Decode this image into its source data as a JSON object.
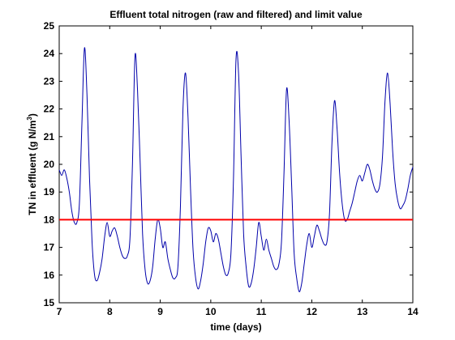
{
  "chart_data": {
    "type": "line",
    "title": "Effluent total nitrogen (raw and filtered) and limit value",
    "xlabel": "time (days)",
    "ylabel_main": "TN in effluent (g N/m",
    "ylabel_sup": "3",
    "ylabel_close": ")",
    "xlim": [
      7,
      14
    ],
    "ylim": [
      15,
      25
    ],
    "xticks": [
      7,
      8,
      9,
      10,
      11,
      12,
      13,
      14
    ],
    "yticks": [
      15,
      16,
      17,
      18,
      19,
      20,
      21,
      22,
      23,
      24,
      25
    ],
    "xtick_labels": [
      "7",
      "8",
      "9",
      "10",
      "11",
      "12",
      "13",
      "14"
    ],
    "ytick_labels": [
      "15",
      "16",
      "17",
      "18",
      "19",
      "20",
      "21",
      "22",
      "23",
      "24",
      "25"
    ],
    "grid": false,
    "colors": {
      "effluent": "#0000aa",
      "limit": "#ff0000"
    },
    "series": [
      {
        "x": [
          7.0,
          7.05,
          7.1,
          7.15,
          7.2,
          7.25,
          7.3,
          7.35,
          7.4,
          7.45,
          7.5,
          7.55,
          7.6,
          7.65,
          7.7,
          7.75,
          7.8,
          7.85,
          7.9,
          7.95,
          8.0,
          8.05,
          8.1,
          8.15,
          8.2,
          8.25,
          8.3,
          8.35,
          8.4,
          8.45,
          8.5,
          8.55,
          8.6,
          8.65,
          8.7,
          8.75,
          8.8,
          8.85,
          8.9,
          8.95,
          9.0,
          9.05,
          9.1,
          9.15,
          9.2,
          9.25,
          9.3,
          9.35,
          9.4,
          9.45,
          9.5,
          9.55,
          9.6,
          9.65,
          9.7,
          9.75,
          9.8,
          9.85,
          9.9,
          9.95,
          10.0,
          10.05,
          10.1,
          10.15,
          10.2,
          10.25,
          10.3,
          10.35,
          10.4,
          10.45,
          10.5,
          10.55,
          10.6,
          10.65,
          10.7,
          10.75,
          10.8,
          10.85,
          10.9,
          10.95,
          11.0,
          11.05,
          11.1,
          11.15,
          11.2,
          11.25,
          11.3,
          11.35,
          11.4,
          11.45,
          11.5,
          11.55,
          11.6,
          11.65,
          11.7,
          11.75,
          11.8,
          11.85,
          11.9,
          11.95,
          12.0,
          12.05,
          12.1,
          12.15,
          12.2,
          12.25,
          12.3,
          12.35,
          12.4,
          12.45,
          12.5,
          12.55,
          12.6,
          12.65,
          12.7,
          12.75,
          12.8,
          12.85,
          12.9,
          12.95,
          13.0,
          13.05,
          13.1,
          13.15,
          13.2,
          13.25,
          13.3,
          13.35,
          13.4,
          13.45,
          13.5,
          13.55,
          13.6,
          13.65,
          13.7,
          13.75,
          13.8,
          13.85,
          13.9,
          13.95,
          14.0
        ],
        "y": [
          19.8,
          19.6,
          19.8,
          19.5,
          19.0,
          18.3,
          17.9,
          17.9,
          18.6,
          21.5,
          24.2,
          22.5,
          19.5,
          17.2,
          16.0,
          15.8,
          16.1,
          16.6,
          17.4,
          17.9,
          17.4,
          17.6,
          17.7,
          17.4,
          17.0,
          16.7,
          16.6,
          16.7,
          17.3,
          20.0,
          23.9,
          22.7,
          20.2,
          17.5,
          16.2,
          15.7,
          15.8,
          16.3,
          17.3,
          18.0,
          17.7,
          17.0,
          17.2,
          16.6,
          16.2,
          15.9,
          15.9,
          16.3,
          18.5,
          22.0,
          23.3,
          21.7,
          19.1,
          16.9,
          15.9,
          15.5,
          15.8,
          16.4,
          17.2,
          17.7,
          17.6,
          17.2,
          17.5,
          17.3,
          16.8,
          16.3,
          16.0,
          16.1,
          16.8,
          19.5,
          23.8,
          23.3,
          20.3,
          17.5,
          16.3,
          15.6,
          15.7,
          16.2,
          17.0,
          17.9,
          17.4,
          16.9,
          17.3,
          16.9,
          16.6,
          16.3,
          16.2,
          16.4,
          17.2,
          19.7,
          22.7,
          21.6,
          19.3,
          16.8,
          15.9,
          15.4,
          15.7,
          16.4,
          17.1,
          17.5,
          17.0,
          17.4,
          17.8,
          17.6,
          17.3,
          17.1,
          17.2,
          18.2,
          20.8,
          22.3,
          21.3,
          19.7,
          18.6,
          18.0,
          18.0,
          18.3,
          18.6,
          19.0,
          19.4,
          19.6,
          19.4,
          19.7,
          20.0,
          19.8,
          19.4,
          19.1,
          19.0,
          19.3,
          20.3,
          22.3,
          23.3,
          22.2,
          20.5,
          19.3,
          18.7,
          18.4,
          18.5,
          18.7,
          19.1,
          19.6,
          19.9
        ]
      },
      {
        "x": [
          7,
          14
        ],
        "y": [
          18,
          18
        ]
      }
    ]
  }
}
